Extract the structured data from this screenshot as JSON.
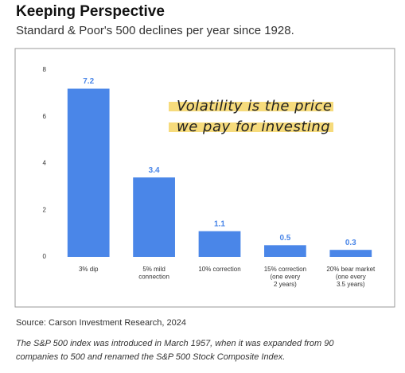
{
  "chart_data": {
    "type": "bar",
    "title": "Keeping Perspective",
    "subtitle": "Standard & Poor's 500 declines per year since 1928.",
    "categories": [
      "3% dip",
      "5% mild\nconnection",
      "10% correction",
      "15% correction\n(one every\n2 years)",
      "20% bear market\n(one every\n3.5 years)"
    ],
    "values": [
      7.2,
      3.4,
      1.1,
      0.5,
      0.3
    ],
    "color": "#4a86e8",
    "ylim": [
      0,
      8
    ],
    "yticks": [
      0,
      2,
      4,
      6,
      8
    ],
    "grid": false,
    "annotation": [
      "Volatility is the price",
      "we pay for investing"
    ],
    "source": "Source: Carson Investment Research, 2024",
    "footnote": "The S&P 500 index was introduced in March 1957, when it was expanded from 90 companies to 500 and renamed the S&P 500 Stock Composite Index."
  }
}
